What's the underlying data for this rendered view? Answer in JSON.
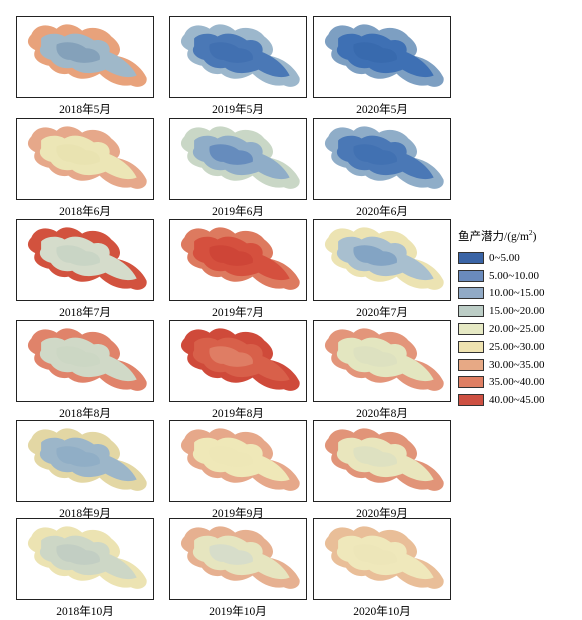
{
  "panels": [
    {
      "label": "2018年5月",
      "fill": "#9fb8c9",
      "edge": "#e8a27b",
      "core": "#7f9cb7"
    },
    {
      "label": "2019年5月",
      "fill": "#4a78b6",
      "edge": "#9cb7cc",
      "core": "#3f6fb0"
    },
    {
      "label": "2020年5月",
      "fill": "#3e70b4",
      "edge": "#7d9fc2",
      "core": "#3768ad"
    },
    {
      "label": "2018年6月",
      "fill": "#ece6b6",
      "edge": "#e6a88a",
      "core": "#e9e2b0"
    },
    {
      "label": "2019年6月",
      "fill": "#8fadc8",
      "edge": "#c9d7c6",
      "core": "#5f86bb"
    },
    {
      "label": "2020年6月",
      "fill": "#4a78b6",
      "edge": "#8fadc8",
      "core": "#4070b2"
    },
    {
      "label": "2018年7月",
      "fill": "#d5dccb",
      "edge": "#d2523e",
      "core": "#c7d3c4"
    },
    {
      "label": "2019年7月",
      "fill": "#d5503e",
      "edge": "#dd7a5f",
      "core": "#cd4336"
    },
    {
      "label": "2020年7月",
      "fill": "#a8bfcf",
      "edge": "#ece3b2",
      "core": "#7c9fc2"
    },
    {
      "label": "2018年8月",
      "fill": "#d0d9c7",
      "edge": "#e0836a",
      "core": "#cbd6c3"
    },
    {
      "label": "2019年8月",
      "fill": "#d8604a",
      "edge": "#cf4a3a",
      "core": "#e08368"
    },
    {
      "label": "2020年8月",
      "fill": "#e3e6c0",
      "edge": "#e3957a",
      "core": "#dcdfc0"
    },
    {
      "label": "2018年9月",
      "fill": "#9cb6c9",
      "edge": "#e3d7a4",
      "core": "#8eadc6"
    },
    {
      "label": "2019年9月",
      "fill": "#efe8b8",
      "edge": "#e6a88a",
      "core": "#ede6b6"
    },
    {
      "label": "2020年9月",
      "fill": "#e9e6bd",
      "edge": "#e19478",
      "core": "#dcdfc2"
    },
    {
      "label": "2018年10月",
      "fill": "#cdd7c6",
      "edge": "#ece3b2",
      "core": "#bfcdc2"
    },
    {
      "label": "2019年10月",
      "fill": "#e6e5bf",
      "edge": "#e6b090",
      "core": "#d4dccb"
    },
    {
      "label": "2020年10月",
      "fill": "#efe8bb",
      "edge": "#e9be98",
      "core": "#ece5b8"
    }
  ],
  "legend": {
    "title_main": "鱼产潜力/(g/m",
    "title_sup": "2",
    "title_end": ")",
    "items": [
      {
        "label": "0~5.00",
        "color": "#3a64a6"
      },
      {
        "label": "5.00~10.00",
        "color": "#6a8bbd"
      },
      {
        "label": "10.00~15.00",
        "color": "#91aac6"
      },
      {
        "label": "15.00~20.00",
        "color": "#bccdc6"
      },
      {
        "label": "20.00~25.00",
        "color": "#e6e9c4"
      },
      {
        "label": "25.00~30.00",
        "color": "#efe3b0"
      },
      {
        "label": "30.00~35.00",
        "color": "#e7a985"
      },
      {
        "label": "35.00~40.00",
        "color": "#df7f63"
      },
      {
        "label": "40.00~45.00",
        "color": "#cd5042"
      }
    ]
  }
}
